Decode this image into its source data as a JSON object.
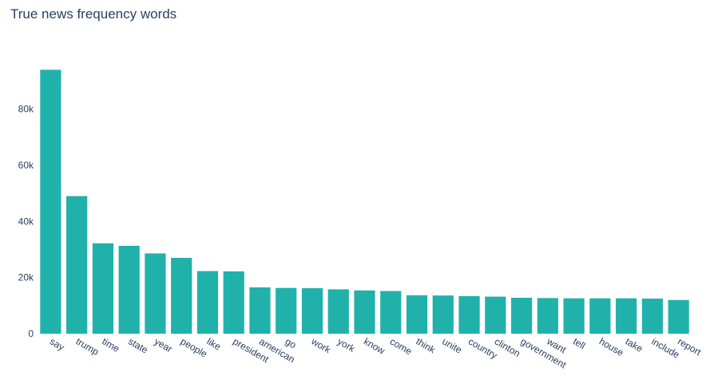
{
  "chart_data": {
    "type": "bar",
    "title": "True news frequency words",
    "categories": [
      "say",
      "trump",
      "time",
      "state",
      "year",
      "people",
      "like",
      "president",
      "american",
      "go",
      "work",
      "york",
      "know",
      "come",
      "think",
      "unite",
      "country",
      "clinton",
      "government",
      "want",
      "tell",
      "house",
      "take",
      "include",
      "report"
    ],
    "values": [
      94000,
      49000,
      32200,
      31300,
      28600,
      27000,
      22300,
      22200,
      16500,
      16300,
      16200,
      15800,
      15400,
      15200,
      13700,
      13600,
      13400,
      13200,
      12800,
      12700,
      12600,
      12600,
      12600,
      12500,
      12000
    ],
    "yticks": [
      0,
      20000,
      40000,
      60000,
      80000
    ],
    "ytick_labels": [
      "0",
      "20k",
      "40k",
      "60k",
      "80k"
    ],
    "ylim": [
      0,
      98947
    ],
    "xlabel": "",
    "ylabel": "",
    "bar_color": "#20b2aa",
    "grid": true
  }
}
